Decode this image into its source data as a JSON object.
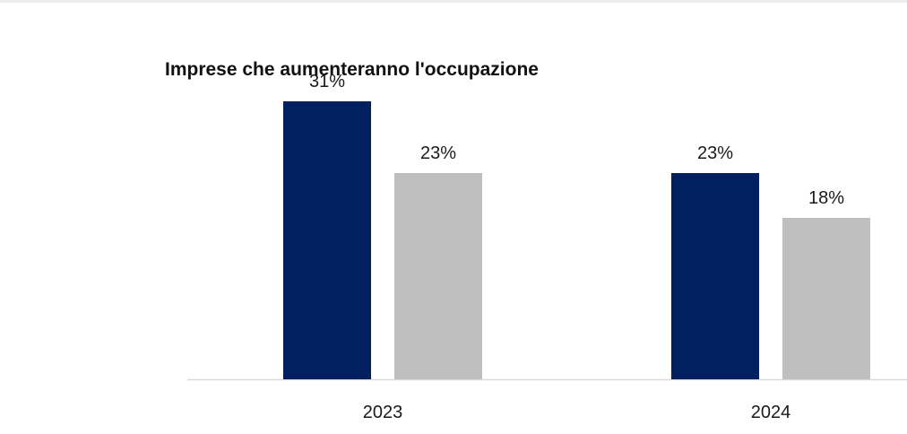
{
  "chart_data": {
    "type": "bar",
    "title": "Imprese che aumenteranno l'occupazione",
    "categories": [
      "2023",
      "2024"
    ],
    "series": [
      {
        "values": [
          31,
          23
        ],
        "labels": [
          "31%",
          "23%"
        ],
        "color": "#002060"
      },
      {
        "values": [
          23,
          18
        ],
        "labels": [
          "23%",
          "18%"
        ],
        "color": "#bfbfbf"
      }
    ],
    "ylim": [
      0,
      40
    ],
    "grid": false,
    "legend": "none",
    "axis_color": "#d9d9d9"
  }
}
